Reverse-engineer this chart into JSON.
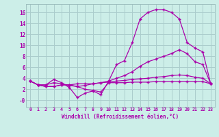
{
  "xlabel": "Windchill (Refroidissement éolien,°C)",
  "background_color": "#cceee8",
  "grid_color": "#aacccc",
  "line_color": "#aa00aa",
  "x_ticks": [
    0,
    1,
    2,
    3,
    4,
    5,
    6,
    7,
    8,
    9,
    10,
    11,
    12,
    13,
    14,
    15,
    16,
    17,
    18,
    19,
    20,
    21,
    22,
    23
  ],
  "y_ticks": [
    0,
    2,
    4,
    6,
    8,
    10,
    12,
    14,
    16
  ],
  "ylim": [
    -1.2,
    17.5
  ],
  "xlim": [
    -0.5,
    23.5
  ],
  "series1": [
    3.5,
    2.8,
    2.8,
    3.8,
    3.2,
    2.3,
    0.5,
    1.3,
    1.7,
    1.0,
    3.5,
    6.5,
    7.2,
    10.5,
    14.8,
    16.0,
    16.5,
    16.5,
    16.0,
    14.8,
    10.5,
    9.5,
    8.8,
    3.0
  ],
  "series2": [
    3.5,
    2.8,
    2.8,
    3.2,
    3.0,
    2.7,
    2.5,
    2.7,
    3.0,
    3.2,
    3.5,
    4.0,
    4.5,
    5.2,
    6.2,
    7.0,
    7.5,
    8.0,
    8.5,
    9.2,
    8.5,
    7.0,
    6.5,
    3.0
  ],
  "series3": [
    3.5,
    2.8,
    2.5,
    2.5,
    2.8,
    2.8,
    3.0,
    3.0,
    3.0,
    3.2,
    3.3,
    3.5,
    3.6,
    3.8,
    3.9,
    4.0,
    4.2,
    4.3,
    4.5,
    4.6,
    4.5,
    4.2,
    4.0,
    3.0
  ],
  "series4": [
    3.5,
    2.8,
    2.5,
    2.5,
    2.8,
    2.8,
    2.5,
    2.0,
    1.8,
    1.5,
    3.2,
    3.2,
    3.2,
    3.3,
    3.3,
    3.3,
    3.4,
    3.4,
    3.4,
    3.4,
    3.4,
    3.4,
    3.4,
    3.0
  ]
}
